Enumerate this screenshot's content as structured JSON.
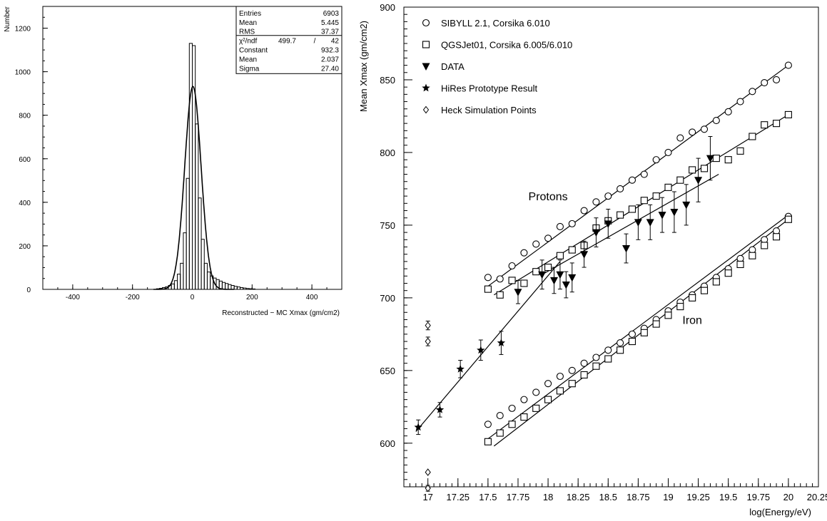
{
  "chart_data": [
    {
      "type": "histogram",
      "ylabel": "Number",
      "xlabel": "Reconstructed − MC Xmax (gm/cm2)",
      "xlim": [
        -500,
        500
      ],
      "ylim": [
        0,
        1300
      ],
      "x_ticks": [
        -400,
        -200,
        0,
        200,
        400
      ],
      "x_tick_labels": [
        "-400",
        "-200",
        "0",
        "200",
        "400"
      ],
      "y_ticks": [
        0,
        200,
        400,
        600,
        800,
        1000,
        1200
      ],
      "y_tick_labels": [
        "0",
        "200",
        "400",
        "600",
        "800",
        "1000",
        "1200"
      ],
      "stats": [
        {
          "label": "Entries",
          "value": "6903"
        },
        {
          "label": "Mean",
          "value": "5.445"
        },
        {
          "label": "RMS",
          "value": "37.37"
        },
        {
          "label": "χ²/ndf",
          "value": "499.7",
          "value2": "42"
        },
        {
          "label": "Constant",
          "value": "932.3"
        },
        {
          "label": "Mean",
          "value": "2.037"
        },
        {
          "label": "Sigma",
          "value": "27.40"
        }
      ],
      "bins": {
        "edges_start": -120,
        "bin_width": 10,
        "counts": [
          3,
          5,
          8,
          12,
          18,
          25,
          40,
          70,
          120,
          260,
          510,
          1130,
          1120,
          760,
          420,
          230,
          120,
          80,
          62,
          52,
          45,
          38,
          32,
          27,
          22,
          18,
          14,
          11,
          8,
          6,
          4,
          3,
          2
        ]
      },
      "fit": {
        "function": "gaussian",
        "constant": 932.3,
        "mean": 2.037,
        "sigma": 27.4
      }
    },
    {
      "type": "scatter",
      "ylabel": "Mean Xmax (gm/cm2)",
      "xlabel": "log(Energy/eV)",
      "xlim": [
        16.8,
        20.25
      ],
      "ylim": [
        570,
        900
      ],
      "x_ticks": [
        17,
        17.25,
        17.5,
        17.75,
        18,
        18.25,
        18.5,
        18.75,
        19,
        19.25,
        19.5,
        19.75,
        20,
        20.25
      ],
      "x_tick_labels": [
        "17",
        "17.25",
        "17.5",
        "17.75",
        "18",
        "18.25",
        "18.5",
        "18.75",
        "19",
        "19.25",
        "19.5",
        "19.75",
        "20",
        "20.25"
      ],
      "y_ticks": [
        600,
        650,
        700,
        750,
        800,
        850,
        900
      ],
      "y_tick_labels": [
        "600",
        "650",
        "700",
        "750",
        "800",
        "850",
        "900"
      ],
      "legend": [
        {
          "symbol": "circle",
          "label": "SIBYLL 2.1, Corsika 6.010"
        },
        {
          "symbol": "square",
          "label": "QGSJet01, Corsika 6.005/6.010"
        },
        {
          "symbol": "triangle-down",
          "label": "DATA"
        },
        {
          "symbol": "star",
          "label": "HiRes Prototype Result"
        },
        {
          "symbol": "diamond",
          "label": "Heck Simulation Points"
        }
      ],
      "annotations": [
        {
          "text": "Protons",
          "x": 18.0,
          "y": 767
        },
        {
          "text": "Iron",
          "x": 19.2,
          "y": 682
        }
      ],
      "series": [
        {
          "name": "SIBYLL 2.1, Corsika 6.010",
          "marker": "circle",
          "x": [
            17.5,
            17.6,
            17.7,
            17.8,
            17.9,
            18.0,
            18.1,
            18.2,
            18.3,
            18.4,
            18.5,
            18.6,
            18.7,
            18.8,
            18.9,
            19.0,
            19.1,
            19.2,
            19.3,
            19.4,
            19.5,
            19.6,
            19.7,
            19.8,
            19.9,
            20.0
          ],
          "y": [
            714,
            713,
            722,
            731,
            737,
            741,
            749,
            751,
            760,
            766,
            770,
            775,
            781,
            785,
            795,
            800,
            810,
            814,
            816,
            822,
            828,
            835,
            842,
            848,
            850,
            860
          ]
        },
        {
          "name": "SIBYLL 2.1, Corsika 6.010",
          "marker": "circle",
          "x": [
            17.5,
            17.6,
            17.7,
            17.8,
            17.9,
            18.0,
            18.1,
            18.2,
            18.3,
            18.4,
            18.5,
            18.6,
            18.7,
            18.8,
            18.9,
            19.0,
            19.1,
            19.2,
            19.3,
            19.4,
            19.5,
            19.6,
            19.7,
            19.8,
            19.9,
            20.0
          ],
          "y": [
            613,
            619,
            624,
            630,
            635,
            641,
            646,
            650,
            655,
            659,
            664,
            669,
            675,
            679,
            685,
            691,
            697,
            702,
            708,
            714,
            720,
            727,
            733,
            740,
            746,
            756
          ]
        },
        {
          "name": "QGSJet01, Corsika 6.005/6.010",
          "marker": "square",
          "x": [
            17.5,
            17.6,
            17.7,
            17.8,
            17.9,
            18.0,
            18.1,
            18.2,
            18.3,
            18.4,
            18.5,
            18.6,
            18.7,
            18.8,
            18.9,
            19.0,
            19.1,
            19.2,
            19.3,
            19.4,
            19.5,
            19.6,
            19.7,
            19.8,
            19.9,
            20.0
          ],
          "y": [
            706,
            702,
            712,
            710,
            718,
            721,
            729,
            733,
            736,
            748,
            753,
            757,
            761,
            767,
            770,
            776,
            781,
            788,
            789,
            796,
            795,
            801,
            811,
            819,
            820,
            826
          ]
        },
        {
          "name": "QGSJet01, Corsika 6.005/6.010",
          "marker": "square",
          "x": [
            17.5,
            17.6,
            17.7,
            17.8,
            17.9,
            18.0,
            18.1,
            18.2,
            18.3,
            18.4,
            18.5,
            18.6,
            18.7,
            18.8,
            18.9,
            19.0,
            19.1,
            19.2,
            19.3,
            19.4,
            19.5,
            19.6,
            19.7,
            19.8,
            19.9,
            20.0
          ],
          "y": [
            601,
            607,
            613,
            618,
            624,
            630,
            636,
            641,
            647,
            653,
            658,
            664,
            670,
            676,
            682,
            688,
            694,
            700,
            705,
            711,
            717,
            723,
            729,
            736,
            742,
            754
          ]
        },
        {
          "name": "DATA",
          "marker": "triangle-down",
          "x": [
            17.75,
            17.95,
            18.05,
            18.1,
            18.15,
            18.2,
            18.3,
            18.4,
            18.5,
            18.65,
            18.75,
            18.85,
            18.95,
            19.05,
            19.15,
            19.25,
            19.35
          ],
          "y": [
            704,
            716,
            712,
            716,
            709,
            714,
            730,
            745,
            751,
            734,
            752,
            752,
            757,
            759,
            764,
            781,
            796
          ],
          "err": [
            8,
            10,
            9,
            10,
            9,
            10,
            9,
            10,
            10,
            10,
            12,
            12,
            12,
            14,
            14,
            15,
            15
          ]
        },
        {
          "name": "HiRes Prototype Result",
          "marker": "star",
          "x": [
            16.92,
            17.1,
            17.27,
            17.44,
            17.61
          ],
          "y": [
            611,
            623,
            651,
            664,
            669
          ],
          "err": [
            5,
            5,
            6,
            7,
            8
          ]
        },
        {
          "name": "Heck Simulation Points",
          "marker": "diamond",
          "x": [
            17.0,
            17.0,
            17.0,
            17.0
          ],
          "y": [
            681,
            670,
            580,
            569
          ],
          "err": [
            3,
            3,
            0,
            2
          ]
        }
      ],
      "fit_lines": [
        {
          "x": [
            17.5,
            20.0
          ],
          "y": [
            708,
            860
          ]
        },
        {
          "x": [
            17.55,
            20.0
          ],
          "y": [
            702,
            826
          ]
        },
        {
          "x": [
            17.5,
            20.0
          ],
          "y": [
            603,
            757
          ]
        },
        {
          "x": [
            17.55,
            20.0
          ],
          "y": [
            598,
            754
          ]
        },
        {
          "x": [
            16.9,
            18.1
          ],
          "y": [
            608,
            725
          ]
        },
        {
          "x": [
            17.95,
            19.42
          ],
          "y": [
            716,
            785
          ]
        }
      ]
    }
  ]
}
